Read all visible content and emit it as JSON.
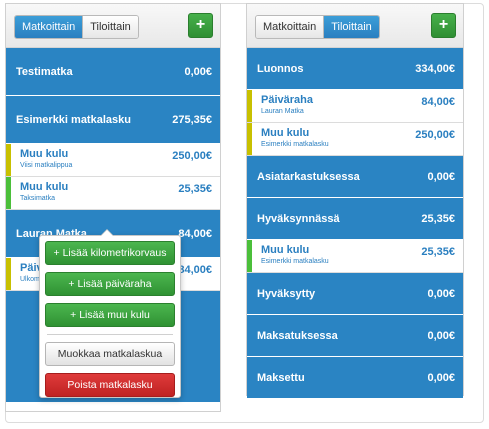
{
  "left": {
    "tabs": [
      "Matkoittain",
      "Tiloittain"
    ],
    "add_label": "+",
    "rows": [
      {
        "kind": "group",
        "label": "Testimatka",
        "amount": "0,00€"
      },
      {
        "kind": "group",
        "label": "Esimerkki matkalasku",
        "amount": "275,35€"
      },
      {
        "kind": "item",
        "title": "Muu kulu",
        "sub": "Viisi matkalippua",
        "amount": "250,00€",
        "color": "#c8c000"
      },
      {
        "kind": "item",
        "title": "Muu kulu",
        "sub": "Taksimatka",
        "amount": "25,35€",
        "color": "#4bbf3a"
      },
      {
        "kind": "group",
        "label": "Lauran Matka",
        "amount": "84,00€"
      },
      {
        "kind": "item",
        "title": "Päiväraha",
        "sub": "Ulkomaanpäiväraha",
        "amount": "84,00€",
        "color": "#c8c000"
      }
    ]
  },
  "popup": {
    "add_km": "+ Lisää kilometrikorvaus",
    "add_daily": "+ Lisää päiväraha",
    "add_other": "+ Lisää muu kulu",
    "edit": "Muokkaa matkalaskua",
    "delete": "Poista matkalasku"
  },
  "right": {
    "tabs": [
      "Matkoittain",
      "Tiloittain"
    ],
    "add_label": "+",
    "rows": [
      {
        "kind": "group",
        "label": "Luonnos",
        "amount": "334,00€"
      },
      {
        "kind": "item",
        "title": "Päiväraha",
        "sub": "Lauran Matka",
        "amount": "84,00€",
        "color": "#c8c000"
      },
      {
        "kind": "item",
        "title": "Muu kulu",
        "sub": "Esimerkki matkalasku",
        "amount": "250,00€",
        "color": "#c8c000"
      },
      {
        "kind": "group",
        "label": "Asiatarkastuksessa",
        "amount": "0,00€"
      },
      {
        "kind": "group",
        "label": "Hyväksynnässä",
        "amount": "25,35€"
      },
      {
        "kind": "item",
        "title": "Muu kulu",
        "sub": "Esimerkki matkalasku",
        "amount": "25,35€",
        "color": "#4bbf3a"
      },
      {
        "kind": "group",
        "label": "Hyväksytty",
        "amount": "0,00€"
      },
      {
        "kind": "group",
        "label": "Maksatuksessa",
        "amount": "0,00€"
      },
      {
        "kind": "group",
        "label": "Maksettu",
        "amount": "0,00€"
      }
    ]
  }
}
